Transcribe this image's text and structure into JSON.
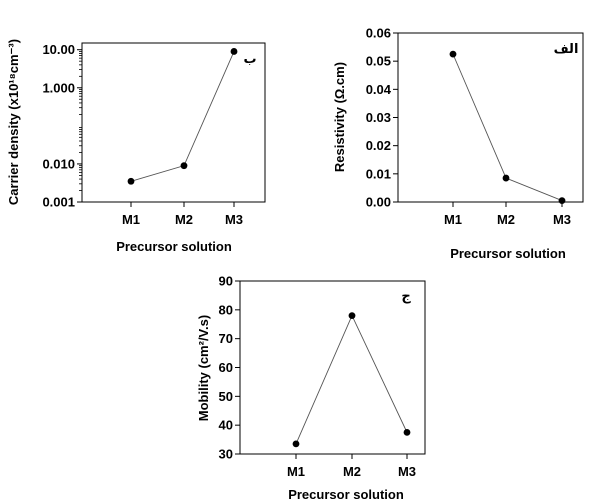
{
  "chart_data": [
    {
      "id": "carrier",
      "type": "line",
      "panel_label": "ب",
      "categories": [
        "M1",
        "M2",
        "M3"
      ],
      "values": [
        0.0035,
        0.009,
        9.0
      ],
      "xlabel": "Precursor solution",
      "ylabel": "Carrier density (x10¹⁸cm⁻³)",
      "yscale": "log",
      "ylim": [
        0.001,
        15
      ],
      "yticks": [
        0.001,
        0.01,
        1,
        10
      ],
      "ytick_labels": [
        "0.001",
        "0.010",
        "1.000",
        "10.00"
      ],
      "grid": false
    },
    {
      "id": "resistivity",
      "type": "line",
      "panel_label": "الف",
      "categories": [
        "M1",
        "M2",
        "M3"
      ],
      "values": [
        0.0525,
        0.0085,
        0.0005
      ],
      "xlabel": "Precursor solution",
      "ylabel": "Resistivity (Ω.cm)",
      "yscale": "linear",
      "ylim": [
        0,
        0.06
      ],
      "yticks": [
        0,
        0.01,
        0.02,
        0.03,
        0.04,
        0.05,
        0.06
      ],
      "ytick_labels": [
        "0.00",
        "0.01",
        "0.02",
        "0.03",
        "0.04",
        "0.05",
        "0.06"
      ],
      "grid": false
    },
    {
      "id": "mobility",
      "type": "line",
      "panel_label": "ج",
      "categories": [
        "M1",
        "M2",
        "M3"
      ],
      "values": [
        33.5,
        78,
        37.5
      ],
      "xlabel": "Precursor solution",
      "ylabel": "Mobility (cm²/V.s)",
      "yscale": "linear",
      "ylim": [
        30,
        90
      ],
      "yticks": [
        30,
        40,
        50,
        60,
        70,
        80,
        90
      ],
      "ytick_labels": [
        "30",
        "40",
        "50",
        "60",
        "70",
        "80",
        "90"
      ],
      "grid": false
    }
  ]
}
